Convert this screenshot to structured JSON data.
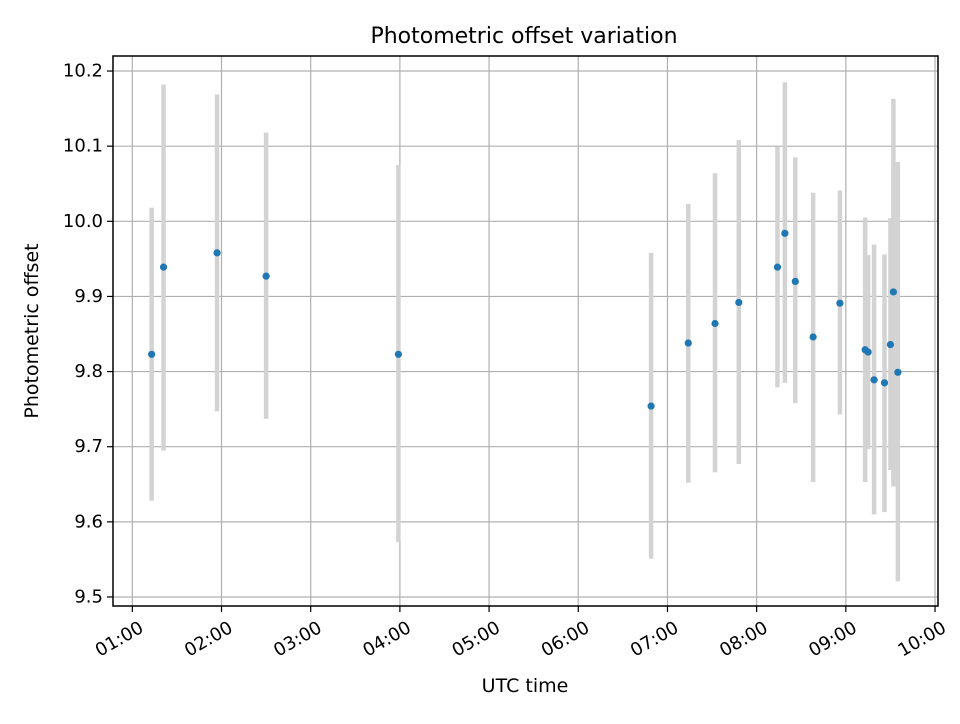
{
  "chart_data": {
    "type": "scatter",
    "title": "Photometric offset variation",
    "xlabel": "UTC time",
    "ylabel": "Photometric offset",
    "x_unit": "UTC time (HH:MM)",
    "xlim": [
      "00:47",
      "10:02"
    ],
    "ylim": [
      9.488,
      10.22
    ],
    "x_ticks": [
      "01:00",
      "02:00",
      "03:00",
      "04:00",
      "05:00",
      "06:00",
      "07:00",
      "08:00",
      "09:00",
      "10:00"
    ],
    "y_ticks": [
      9.5,
      9.6,
      9.7,
      9.8,
      9.9,
      10.0,
      10.1,
      10.2
    ],
    "y_tick_labels": [
      "9.5",
      "9.6",
      "9.7",
      "9.8",
      "9.9",
      "10.0",
      "10.1",
      "10.2"
    ],
    "grid": true,
    "x_tick_rotation": "30 degrees",
    "series": [
      {
        "marker_color": "#1f77b4",
        "errorbar_color": "#d3d3d3",
        "points": [
          {
            "x": "01:13",
            "y": 9.823,
            "low": 9.628,
            "high": 10.018
          },
          {
            "x": "01:21",
            "y": 9.939,
            "low": 9.695,
            "high": 10.182
          },
          {
            "x": "01:57",
            "y": 9.958,
            "low": 9.747,
            "high": 10.169
          },
          {
            "x": "02:30",
            "y": 9.927,
            "low": 9.737,
            "high": 10.118
          },
          {
            "x": "03:59",
            "y": 9.823,
            "low": 9.573,
            "high": 10.075
          },
          {
            "x": "06:49",
            "y": 9.754,
            "low": 9.551,
            "high": 9.958
          },
          {
            "x": "07:14",
            "y": 9.838,
            "low": 9.652,
            "high": 10.023
          },
          {
            "x": "07:32",
            "y": 9.864,
            "low": 9.666,
            "high": 10.064
          },
          {
            "x": "07:48",
            "y": 9.892,
            "low": 9.677,
            "high": 10.108
          },
          {
            "x": "08:14",
            "y": 9.939,
            "low": 9.779,
            "high": 10.099
          },
          {
            "x": "08:19",
            "y": 9.984,
            "low": 9.785,
            "high": 10.185
          },
          {
            "x": "08:26",
            "y": 9.92,
            "low": 9.758,
            "high": 10.085
          },
          {
            "x": "08:38",
            "y": 9.846,
            "low": 9.653,
            "high": 10.038
          },
          {
            "x": "08:56",
            "y": 9.891,
            "low": 9.743,
            "high": 10.041
          },
          {
            "x": "09:13",
            "y": 9.829,
            "low": 9.653,
            "high": 10.005
          },
          {
            "x": "09:15",
            "y": 9.826,
            "low": 9.697,
            "high": 9.955
          },
          {
            "x": "09:19",
            "y": 9.789,
            "low": 9.61,
            "high": 9.969
          },
          {
            "x": "09:26",
            "y": 9.785,
            "low": 9.613,
            "high": 9.956
          },
          {
            "x": "09:30",
            "y": 9.836,
            "low": 9.669,
            "high": 10.004
          },
          {
            "x": "09:32",
            "y": 9.906,
            "low": 9.647,
            "high": 10.163
          },
          {
            "x": "09:35",
            "y": 9.799,
            "low": 9.521,
            "high": 10.079
          }
        ]
      }
    ]
  }
}
